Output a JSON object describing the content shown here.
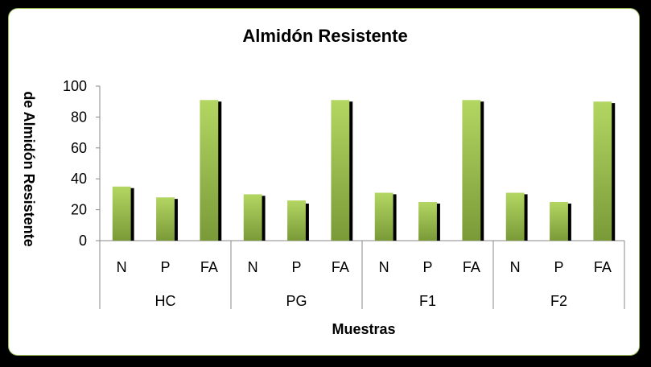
{
  "chart_data": {
    "type": "bar",
    "title": "Almidón Resistente",
    "xlabel": "Muestras",
    "ylabel": "de Almidón Resistente",
    "ylim": [
      0,
      100
    ],
    "yticks": [
      0,
      20,
      40,
      60,
      80,
      100
    ],
    "groups": [
      "HC",
      "PG",
      "F1",
      "F2"
    ],
    "subcategories": [
      "N",
      "P",
      "FA"
    ],
    "series": [
      {
        "values": [
          35,
          28,
          91,
          30,
          26,
          91,
          31,
          25,
          91,
          31,
          25,
          90
        ]
      },
      {
        "values": [
          34,
          27,
          90,
          29,
          24,
          90,
          30,
          24,
          90,
          30,
          24,
          89
        ]
      }
    ],
    "colors": {
      "bar_light": "#b3d662",
      "bar_dark": "#7a9a38",
      "shadow": "#000000",
      "axis": "#888888",
      "border": "#9bbb59"
    }
  }
}
